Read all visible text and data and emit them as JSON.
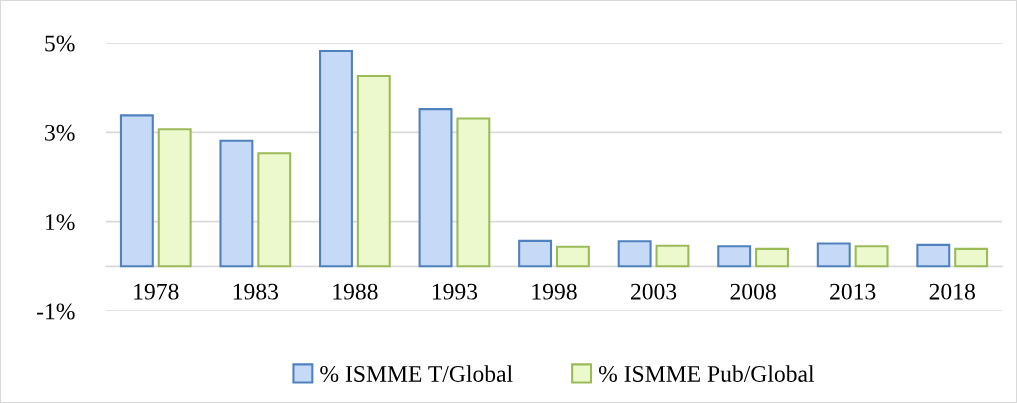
{
  "chart_data": {
    "type": "bar",
    "categories": [
      "1978",
      "1983",
      "1988",
      "1993",
      "1998",
      "2003",
      "2008",
      "2013",
      "2018"
    ],
    "series": [
      {
        "name": "% ISMME T/Global",
        "color": "#c6d9f7",
        "values": [
          3.38,
          2.81,
          4.82,
          3.52,
          0.57,
          0.56,
          0.45,
          0.51,
          0.48
        ]
      },
      {
        "name": "% ISMME Pub/Global",
        "color": "#ebf9cc",
        "values": [
          3.07,
          2.53,
          4.26,
          3.31,
          0.44,
          0.46,
          0.39,
          0.45,
          0.39
        ]
      }
    ],
    "ylim": [
      -1,
      5
    ],
    "yticks": [
      {
        "value": -1,
        "label": "-1%"
      },
      {
        "value": 1,
        "label": "1%"
      },
      {
        "value": 3,
        "label": "3%"
      },
      {
        "value": 5,
        "label": "5%"
      }
    ],
    "grid": "y",
    "legend": "bottom"
  }
}
